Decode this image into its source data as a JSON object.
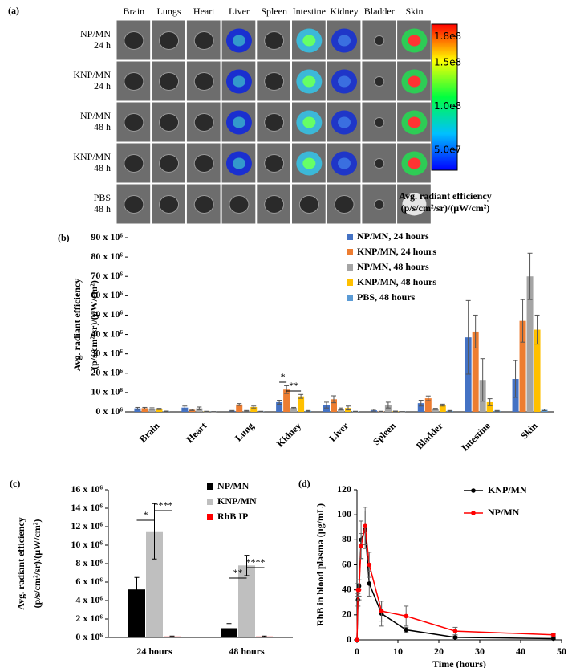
{
  "image_panel": {
    "label": "(a)",
    "columns": [
      "Brain",
      "Lungs",
      "Heart",
      "Liver",
      "Spleen",
      "Intestine",
      "Kidney",
      "Bladder",
      "Skin"
    ],
    "row_labels": [
      [
        "NP/MN",
        "24 h"
      ],
      [
        "KNP/MN",
        "24 h"
      ],
      [
        "NP/MN",
        "48 h"
      ],
      [
        "KNP/MN",
        "48 h"
      ],
      [
        "PBS",
        "48 h"
      ]
    ],
    "colorbar": {
      "title": [
        "Avg. radiant efficiency",
        "(p/s/cm²/sr)/(µW/cm²)"
      ],
      "lim": [
        27000000,
        194000000
      ],
      "ticks": [
        {
          "value": 180000000,
          "label": "1.8e8"
        },
        {
          "value": 150000000,
          "label": "1.5e8"
        },
        {
          "value": 100000000,
          "label": "1.0e8"
        },
        {
          "value": 50000000,
          "label": "5.0e7"
        }
      ]
    }
  },
  "chart_data": [
    {
      "type": "bar",
      "label": "(b)",
      "ylabel": [
        "Avg. radiant efficiency",
        "(p/s/cm²/sr)/(µW/cm²)"
      ],
      "categories": [
        "Brain",
        "Heart",
        "Lung",
        "Kidney",
        "Liver",
        "Spleen",
        "Bladder",
        "Intestine",
        "Skin"
      ],
      "series": [
        {
          "name": "NP/MN, 24 hours",
          "color": "#4472c4",
          "values": [
            1800000,
            2200000,
            500000,
            5000000,
            3500000,
            800000,
            4500000,
            38500000,
            17000000
          ],
          "errors": [
            500000,
            800000,
            200000,
            1000000,
            1500000,
            500000,
            1500000,
            19000000,
            9500000
          ]
        },
        {
          "name": "KNP/MN, 24 hours",
          "color": "#ed7d31",
          "values": [
            1900000,
            1000000,
            3800000,
            11500000,
            6500000,
            200000,
            7000000,
            41500000,
            47000000
          ],
          "errors": [
            400000,
            300000,
            500000,
            2000000,
            1800000,
            100000,
            1200000,
            8500000,
            11000000
          ]
        },
        {
          "name": "NP/MN, 48 hours",
          "color": "#a5a5a5",
          "values": [
            1700000,
            1800000,
            500000,
            2000000,
            1500000,
            3500000,
            1500000,
            16500000,
            70000000
          ],
          "errors": [
            400000,
            700000,
            200000,
            300000,
            500000,
            1500000,
            300000,
            11000000,
            12000000
          ]
        },
        {
          "name": "KNP/MN, 48 hours",
          "color": "#ffc000",
          "values": [
            1500000,
            200000,
            2500000,
            8000000,
            2000000,
            300000,
            3500000,
            5000000,
            42500000
          ],
          "errors": [
            300000,
            100000,
            500000,
            1000000,
            1000000,
            100000,
            500000,
            1800000,
            7500000
          ]
        },
        {
          "name": "PBS, 48 hours",
          "color": "#5b9bd5",
          "values": [
            300000,
            100000,
            200000,
            500000,
            200000,
            100000,
            500000,
            500000,
            1000000
          ],
          "errors": [
            100000,
            50000,
            100000,
            200000,
            100000,
            50000,
            200000,
            200000,
            400000
          ]
        }
      ],
      "annotations": [
        "*",
        "**"
      ],
      "ylim": [
        0,
        90000000
      ],
      "yticks": [
        {
          "value": 0,
          "label": "0 x 10⁶"
        },
        {
          "value": 10000000,
          "label": "10 x 10⁶"
        },
        {
          "value": 20000000,
          "label": "20 x 10⁶"
        },
        {
          "value": 30000000,
          "label": "30 x 10⁶"
        },
        {
          "value": 40000000,
          "label": "40 x 10⁶"
        },
        {
          "value": 50000000,
          "label": "50 x 10⁶"
        },
        {
          "value": 60000000,
          "label": "60 x 10⁶"
        },
        {
          "value": 70000000,
          "label": "70 x 10⁶"
        },
        {
          "value": 80000000,
          "label": "80 x 10⁶"
        },
        {
          "value": 90000000,
          "label": "90 x 10⁶"
        }
      ],
      "legend": "upper right"
    },
    {
      "type": "bar",
      "label": "(c)",
      "ylabel": [
        "Avg. radiant efficiency",
        "(p/s/cm²/sr)/(µW/cm²)"
      ],
      "categories": [
        "24 hours",
        "48 hours"
      ],
      "series": [
        {
          "name": "NP/MN",
          "color": "#000000",
          "values": [
            5200000,
            1000000
          ],
          "errors": [
            1300000,
            500000
          ]
        },
        {
          "name": "KNP/MN",
          "color": "#bfbfbf",
          "values": [
            11500000,
            7800000
          ],
          "errors": [
            3000000,
            1100000
          ]
        },
        {
          "name": "RhB IP",
          "color": "#ff0000",
          "values": [
            100000,
            100000
          ],
          "errors": [
            50000,
            50000
          ]
        }
      ],
      "annotations": [
        "*",
        "****",
        "**",
        "****"
      ],
      "ylim": [
        0,
        16000000
      ],
      "yticks": [
        {
          "value": 0,
          "label": "0 x 10⁶"
        },
        {
          "value": 2000000,
          "label": "2 x 10⁶"
        },
        {
          "value": 4000000,
          "label": "4 x 10⁶"
        },
        {
          "value": 6000000,
          "label": "6 x 10⁶"
        },
        {
          "value": 8000000,
          "label": "8 x 10⁶"
        },
        {
          "value": 10000000,
          "label": "10 x 10⁶"
        },
        {
          "value": 12000000,
          "label": "12 x 10⁶"
        },
        {
          "value": 14000000,
          "label": "14 x 10⁶"
        },
        {
          "value": 16000000,
          "label": "16 x 10⁶"
        }
      ],
      "legend": "upper right"
    },
    {
      "type": "line",
      "label": "(d)",
      "xlabel": "Time (hours)",
      "ylabel": "RhB in blood plasma (µg/mL)",
      "x": [
        0,
        0.25,
        0.5,
        1,
        2,
        3,
        6,
        12,
        24,
        48
      ],
      "series": [
        {
          "name": "KNP/MN",
          "color": "#000000",
          "values": [
            0,
            32,
            43,
            80,
            88,
            45,
            21,
            8,
            2,
            1
          ],
          "errors": [
            0,
            5,
            8,
            15,
            15,
            10,
            10,
            2,
            1,
            0.5
          ]
        },
        {
          "name": "NP/MN",
          "color": "#ff0000",
          "values": [
            0,
            40,
            40,
            75,
            91,
            60,
            23,
            19,
            7,
            4
          ],
          "errors": [
            0,
            5,
            8,
            10,
            15,
            10,
            8,
            8,
            3,
            1
          ]
        }
      ],
      "xlim": [
        0,
        50
      ],
      "xticks": [
        0,
        10,
        20,
        30,
        40,
        50
      ],
      "ylim": [
        0,
        120
      ],
      "yticks": [
        0,
        20,
        40,
        60,
        80,
        100,
        120
      ],
      "legend": "upper right"
    }
  ]
}
